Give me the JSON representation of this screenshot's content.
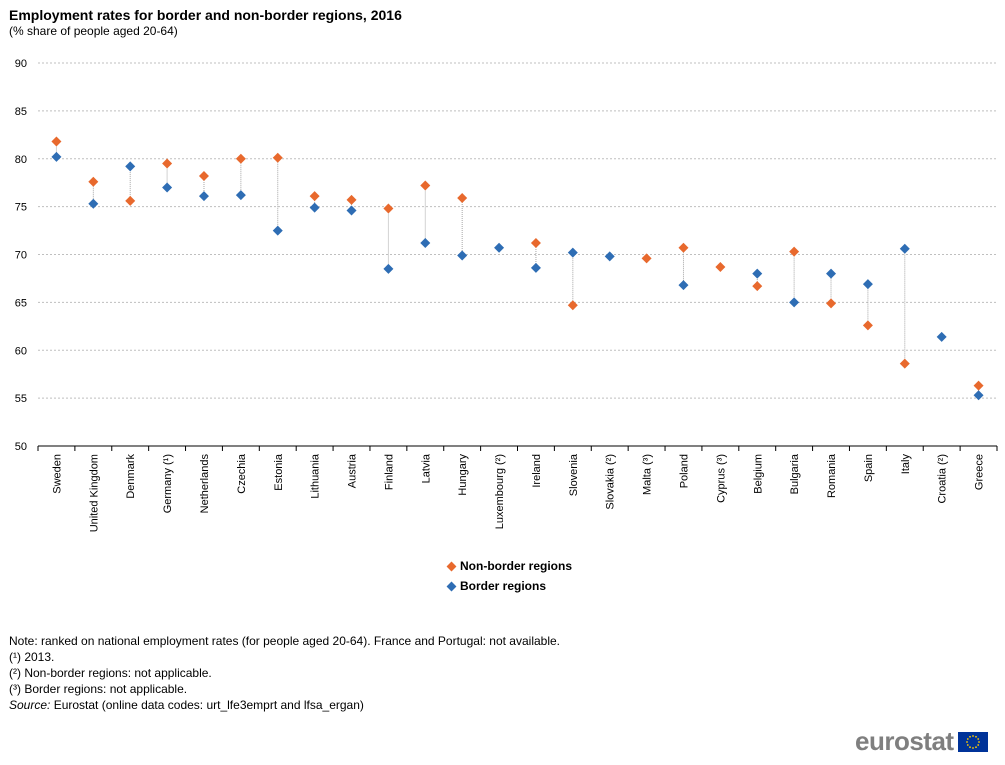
{
  "title": "Employment rates for border and non-border regions, 2016",
  "subtitle": "(% share of people aged 20-64)",
  "colors": {
    "non_border": "#E8692D",
    "border": "#2E6DB4",
    "grid": "#bfbfbf",
    "connector": "#a6a6a6"
  },
  "chart_data": {
    "type": "scatter",
    "title": "Employment rates for border and non-border regions, 2016",
    "subtitle": "(% share of people aged 20-64)",
    "xlabel": "",
    "ylabel": "",
    "ylim": [
      50,
      90
    ],
    "yticks": [
      50,
      55,
      60,
      65,
      70,
      75,
      80,
      85,
      90
    ],
    "grid": true,
    "legend_position": "bottom-center",
    "categories": [
      "Sweden",
      "United Kingdom",
      "Denmark",
      "Germany (¹)",
      "Netherlands",
      "Czechia",
      "Estonia",
      "Lithuania",
      "Austria",
      "Finland",
      "Latvia",
      "Hungary",
      "Luxembourg (²)",
      "Ireland",
      "Slovenia",
      "Slovakia (²)",
      "Malta (³)",
      "Poland",
      "Cyprus (³)",
      "Belgium",
      "Bulgaria",
      "Romania",
      "Spain",
      "Italy",
      "Croatia (²)",
      "Greece"
    ],
    "series": [
      {
        "name": "Non-border regions",
        "values": [
          81.8,
          77.6,
          75.6,
          79.5,
          78.2,
          80.0,
          80.1,
          76.1,
          75.7,
          74.8,
          77.2,
          75.9,
          null,
          71.2,
          64.7,
          null,
          69.6,
          70.7,
          68.7,
          66.7,
          70.3,
          64.9,
          62.6,
          58.6,
          null,
          56.3
        ]
      },
      {
        "name": "Border regions",
        "values": [
          80.2,
          75.3,
          79.2,
          77.0,
          76.1,
          76.2,
          72.5,
          74.9,
          74.6,
          68.5,
          71.2,
          69.9,
          70.7,
          68.6,
          70.2,
          69.8,
          null,
          66.8,
          null,
          68.0,
          65.0,
          68.0,
          66.9,
          70.6,
          61.4,
          55.3
        ]
      }
    ]
  },
  "notes": [
    "Note: ranked on national employment rates (for people aged 20-64). France and Portugal: not available.",
    "(¹) 2013.",
    "(²) Non-border regions: not applicable.",
    "(³) Border regions: not applicable."
  ],
  "source": {
    "label": "Source:",
    "text": "Eurostat (online data codes: urt_lfe3emprt and lfsa_ergan)"
  },
  "logo": {
    "text": "eurostat",
    "flag_icon": "eu-flag-icon"
  }
}
